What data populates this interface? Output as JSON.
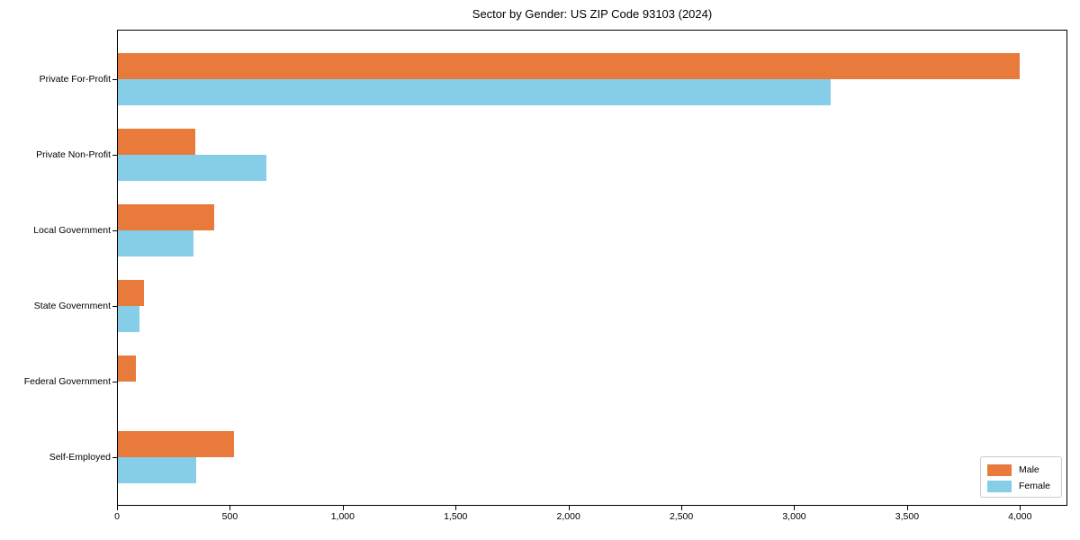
{
  "chart_data": {
    "type": "bar",
    "orientation": "horizontal",
    "title": "Sector by Gender: US ZIP Code 93103 (2024)",
    "categories": [
      "Private For-Profit",
      "Private Non-Profit",
      "Local Government",
      "State Government",
      "Federal Government",
      "Self-Employed"
    ],
    "series": [
      {
        "name": "Male",
        "color": "#E87B3C",
        "values": [
          4000,
          345,
          430,
          120,
          85,
          520
        ]
      },
      {
        "name": "Female",
        "color": "#86CDE8",
        "values": [
          3160,
          660,
          340,
          100,
          0,
          350
        ]
      }
    ],
    "xlabel": "",
    "ylabel": "",
    "xlim": [
      0,
      4210
    ],
    "xticks": [
      0,
      500,
      1000,
      1500,
      2000,
      2500,
      3000,
      3500,
      4000
    ],
    "xtick_labels": [
      "0",
      "500",
      "1,000",
      "1,500",
      "2,000",
      "2,500",
      "3,000",
      "3,500",
      "4,000"
    ],
    "grid": false,
    "legend_position": "lower right"
  },
  "colors": {
    "axis": "#000000",
    "background": "#ffffff",
    "legend_border": "#cccccc",
    "male": "#E87B3C",
    "female": "#86CDE8"
  }
}
